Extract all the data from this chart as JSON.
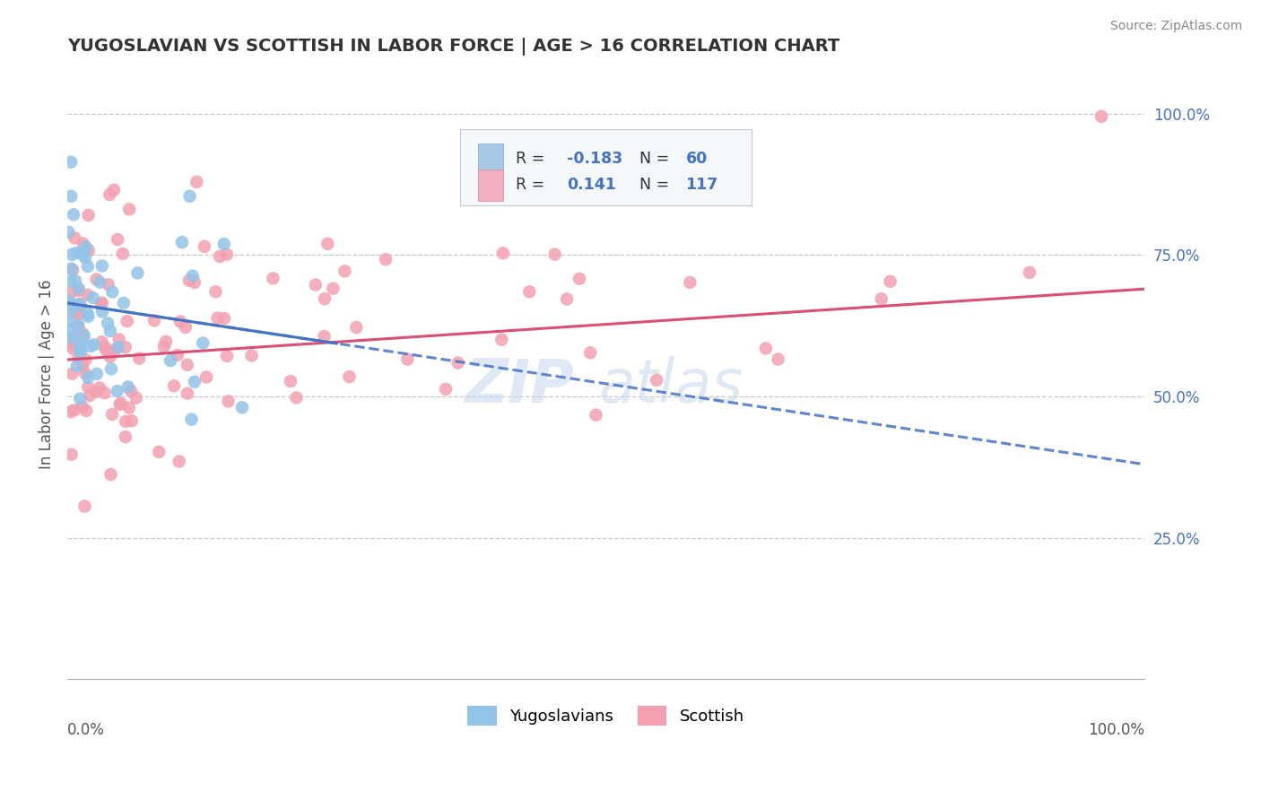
{
  "title": "YUGOSLAVIAN VS SCOTTISH IN LABOR FORCE | AGE > 16 CORRELATION CHART",
  "source": "Source: ZipAtlas.com",
  "ylabel": "In Labor Force | Age > 16",
  "right_ytick_labels": [
    "25.0%",
    "50.0%",
    "75.0%",
    "100.0%"
  ],
  "right_ytick_values": [
    0.25,
    0.5,
    0.75,
    1.0
  ],
  "blue_color": "#93c4e8",
  "pink_color": "#f4a0b0",
  "trend_blue_color": "#4472c4",
  "trend_pink_color": "#d94f76",
  "background_color": "#ffffff",
  "grid_color": "#c8c8c8",
  "watermark": "ZIPat las",
  "xlo": 0.0,
  "xhi": 1.0,
  "ylo": 0.0,
  "yhi": 1.08,
  "blue_R": -0.183,
  "blue_N": 60,
  "pink_R": 0.141,
  "pink_N": 117,
  "legend_box_color": "#f0f4f8",
  "legend_border_color": "#c0c8d0"
}
